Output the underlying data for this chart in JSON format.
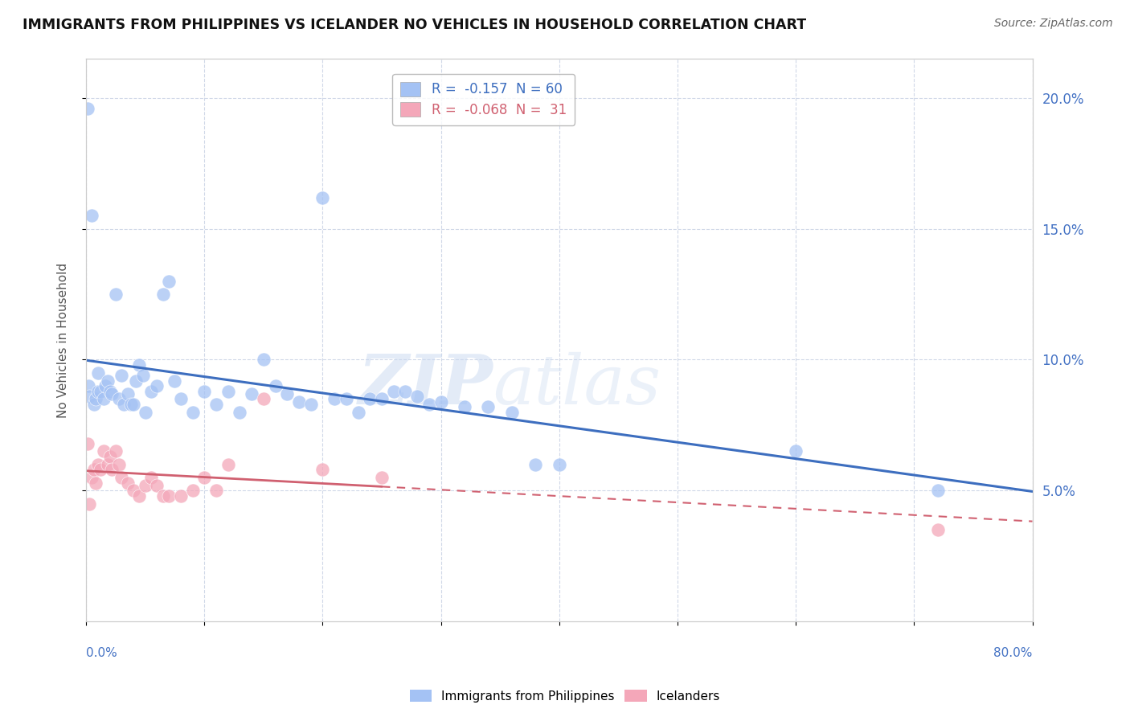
{
  "title": "IMMIGRANTS FROM PHILIPPINES VS ICELANDER NO VEHICLES IN HOUSEHOLD CORRELATION CHART",
  "source": "Source: ZipAtlas.com",
  "ylabel": "No Vehicles in Household",
  "watermark": "ZIPatlas",
  "blue_color": "#a4c2f4",
  "pink_color": "#f4a7b9",
  "blue_line_color": "#3d6ebf",
  "pink_line_color": "#d06070",
  "legend_blue_R": "-0.157",
  "legend_blue_N": "60",
  "legend_pink_R": "-0.068",
  "legend_pink_N": "31",
  "xmin": 0.0,
  "xmax": 0.8,
  "ymin": 0.0,
  "ymax": 0.215,
  "blue_scatter_x": [
    0.001,
    0.002,
    0.003,
    0.005,
    0.007,
    0.008,
    0.01,
    0.01,
    0.012,
    0.015,
    0.016,
    0.018,
    0.02,
    0.022,
    0.025,
    0.028,
    0.03,
    0.032,
    0.035,
    0.038,
    0.04,
    0.042,
    0.045,
    0.048,
    0.05,
    0.055,
    0.06,
    0.065,
    0.07,
    0.075,
    0.08,
    0.09,
    0.1,
    0.11,
    0.12,
    0.13,
    0.14,
    0.15,
    0.16,
    0.17,
    0.18,
    0.19,
    0.2,
    0.21,
    0.22,
    0.23,
    0.24,
    0.25,
    0.26,
    0.27,
    0.28,
    0.29,
    0.3,
    0.32,
    0.34,
    0.36,
    0.38,
    0.4,
    0.6,
    0.72
  ],
  "blue_scatter_y": [
    0.196,
    0.09,
    0.086,
    0.155,
    0.083,
    0.085,
    0.095,
    0.088,
    0.088,
    0.085,
    0.09,
    0.092,
    0.088,
    0.087,
    0.125,
    0.085,
    0.094,
    0.083,
    0.087,
    0.083,
    0.083,
    0.092,
    0.098,
    0.094,
    0.08,
    0.088,
    0.09,
    0.125,
    0.13,
    0.092,
    0.085,
    0.08,
    0.088,
    0.083,
    0.088,
    0.08,
    0.087,
    0.1,
    0.09,
    0.087,
    0.084,
    0.083,
    0.162,
    0.085,
    0.085,
    0.08,
    0.085,
    0.085,
    0.088,
    0.088,
    0.086,
    0.083,
    0.084,
    0.082,
    0.082,
    0.08,
    0.06,
    0.06,
    0.065,
    0.05
  ],
  "pink_scatter_x": [
    0.001,
    0.003,
    0.005,
    0.007,
    0.008,
    0.01,
    0.012,
    0.015,
    0.018,
    0.02,
    0.022,
    0.025,
    0.028,
    0.03,
    0.035,
    0.04,
    0.045,
    0.05,
    0.055,
    0.06,
    0.065,
    0.07,
    0.08,
    0.09,
    0.1,
    0.11,
    0.12,
    0.15,
    0.2,
    0.25,
    0.72
  ],
  "pink_scatter_y": [
    0.068,
    0.045,
    0.055,
    0.058,
    0.053,
    0.06,
    0.058,
    0.065,
    0.06,
    0.063,
    0.058,
    0.065,
    0.06,
    0.055,
    0.053,
    0.05,
    0.048,
    0.052,
    0.055,
    0.052,
    0.048,
    0.048,
    0.048,
    0.05,
    0.055,
    0.05,
    0.06,
    0.085,
    0.058,
    0.055,
    0.035
  ]
}
